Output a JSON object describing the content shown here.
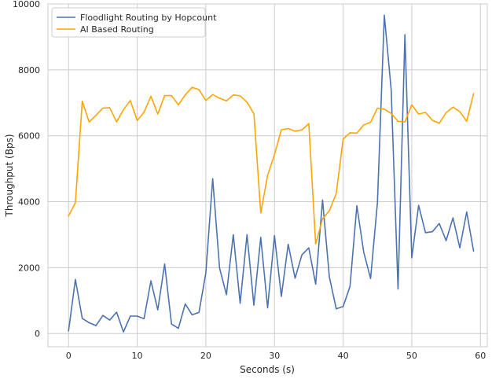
{
  "chart_data": {
    "type": "line",
    "xlabel": "Seconds (s)",
    "ylabel": "Throughput (Bps)",
    "xlim": [
      -3,
      61
    ],
    "ylim": [
      -400,
      10000
    ],
    "xticks": [
      0,
      10,
      20,
      30,
      40,
      50,
      60
    ],
    "yticks": [
      0,
      2000,
      4000,
      6000,
      8000,
      10000
    ],
    "x_tick_labels": [
      "0",
      "10",
      "20",
      "30",
      "40",
      "50",
      "60"
    ],
    "y_tick_labels": [
      "0",
      "2000",
      "4000",
      "6000",
      "8000",
      "10000"
    ],
    "grid": true,
    "legend_position": "top-left",
    "x": [
      0,
      1,
      2,
      3,
      4,
      5,
      6,
      7,
      8,
      9,
      10,
      11,
      12,
      13,
      14,
      15,
      16,
      17,
      18,
      19,
      20,
      21,
      22,
      23,
      24,
      25,
      26,
      27,
      28,
      29,
      30,
      31,
      32,
      33,
      34,
      35,
      36,
      37,
      38,
      39,
      40,
      41,
      42,
      43,
      44,
      45,
      46,
      47,
      48,
      49,
      50,
      51,
      52,
      53,
      54,
      55,
      56,
      57,
      58,
      59
    ],
    "series": [
      {
        "name": "Floodlight Routing by Hopcount",
        "color": "#4c72b0",
        "values": [
          80,
          1640,
          460,
          330,
          240,
          550,
          410,
          650,
          50,
          530,
          530,
          450,
          1600,
          720,
          2110,
          290,
          160,
          900,
          570,
          640,
          1840,
          4700,
          1990,
          1180,
          3000,
          920,
          3000,
          860,
          2920,
          780,
          2970,
          1130,
          2710,
          1680,
          2390,
          2600,
          1500,
          4050,
          1710,
          750,
          820,
          1430,
          3880,
          2470,
          1670,
          3980,
          9660,
          7400,
          1350,
          9070,
          2300,
          3890,
          3060,
          3090,
          3340,
          2820,
          3510,
          2600,
          3690,
          2500
        ]
      },
      {
        "name": "AI Based Routing",
        "color": "#ffa500",
        "values": [
          3570,
          3970,
          7050,
          6420,
          6620,
          6840,
          6850,
          6420,
          6790,
          7070,
          6460,
          6720,
          7200,
          6660,
          7220,
          7220,
          6940,
          7240,
          7470,
          7400,
          7070,
          7250,
          7140,
          7060,
          7240,
          7210,
          7020,
          6670,
          3660,
          4800,
          5430,
          6180,
          6220,
          6140,
          6180,
          6370,
          2720,
          3480,
          3730,
          4250,
          5900,
          6090,
          6080,
          6330,
          6410,
          6840,
          6810,
          6680,
          6440,
          6420,
          6940,
          6660,
          6710,
          6470,
          6380,
          6700,
          6870,
          6730,
          6440,
          7280
        ]
      }
    ]
  }
}
